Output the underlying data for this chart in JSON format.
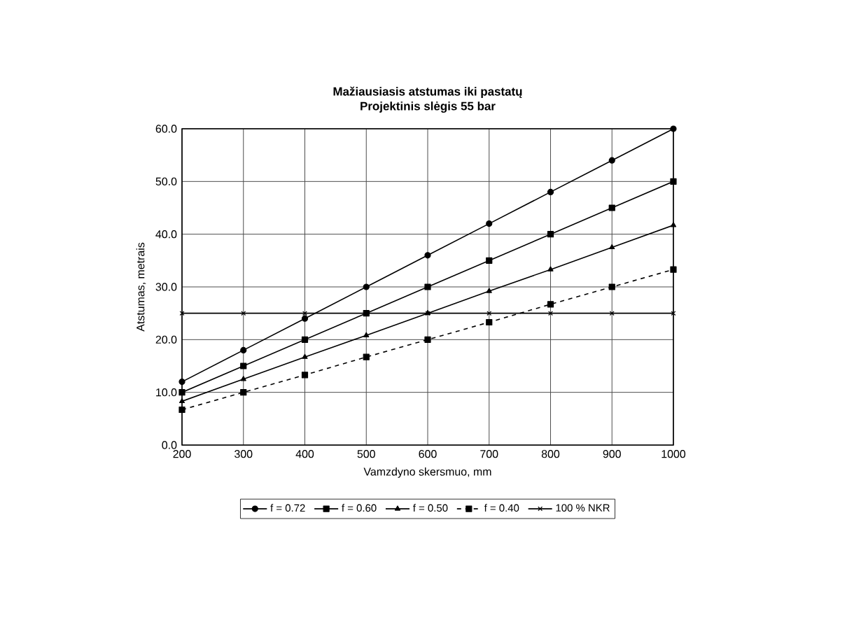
{
  "chart_data": {
    "type": "line",
    "title": "Mažiausiasis atstumas iki pastatų",
    "subtitle": "Projektinis slėgis 55 bar",
    "xlabel": "Vamzdyno skersmuo, mm",
    "ylabel": "Atstumas, metrais",
    "x": [
      200,
      300,
      400,
      500,
      600,
      700,
      800,
      900,
      1000
    ],
    "series": [
      {
        "name": "f = 0.72",
        "color": "#000000",
        "marker": "circle",
        "values": [
          12,
          18,
          24,
          30,
          36,
          42,
          48,
          54,
          60
        ]
      },
      {
        "name": "f = 0.60",
        "color": "#000000",
        "marker": "square",
        "values": [
          10,
          15,
          20,
          25,
          30,
          35,
          40,
          45,
          50
        ]
      },
      {
        "name": "f = 0.50",
        "color": "#000000",
        "marker": "triangle",
        "values": [
          8.3,
          12.5,
          16.7,
          20.8,
          25,
          29.2,
          33.3,
          37.5,
          41.7
        ]
      },
      {
        "name": "f = 0.40",
        "color": "#000000",
        "marker": "square",
        "line_style": "dashed",
        "values": [
          6.7,
          10,
          13.3,
          16.7,
          20,
          23.3,
          26.7,
          30,
          33.3
        ]
      },
      {
        "name": "100 % NKR",
        "color": "#000000",
        "marker": "cross",
        "values": [
          25,
          25,
          25,
          25,
          25,
          25,
          25,
          25,
          25
        ]
      }
    ],
    "xlim": [
      200,
      1000
    ],
    "xticks": [
      200,
      300,
      400,
      500,
      600,
      700,
      800,
      900,
      1000
    ],
    "ylim": [
      0,
      60
    ],
    "yticks": [
      {
        "value": 0,
        "label": "0.0"
      },
      {
        "value": 10,
        "label": "10.0"
      },
      {
        "value": 20,
        "label": "20.0"
      },
      {
        "value": 30,
        "label": "30.0"
      },
      {
        "value": 40,
        "label": "40.0"
      },
      {
        "value": 50,
        "label": "50.0"
      },
      {
        "value": 60,
        "label": "60.0"
      }
    ],
    "grid": true,
    "legend": "bottom"
  }
}
